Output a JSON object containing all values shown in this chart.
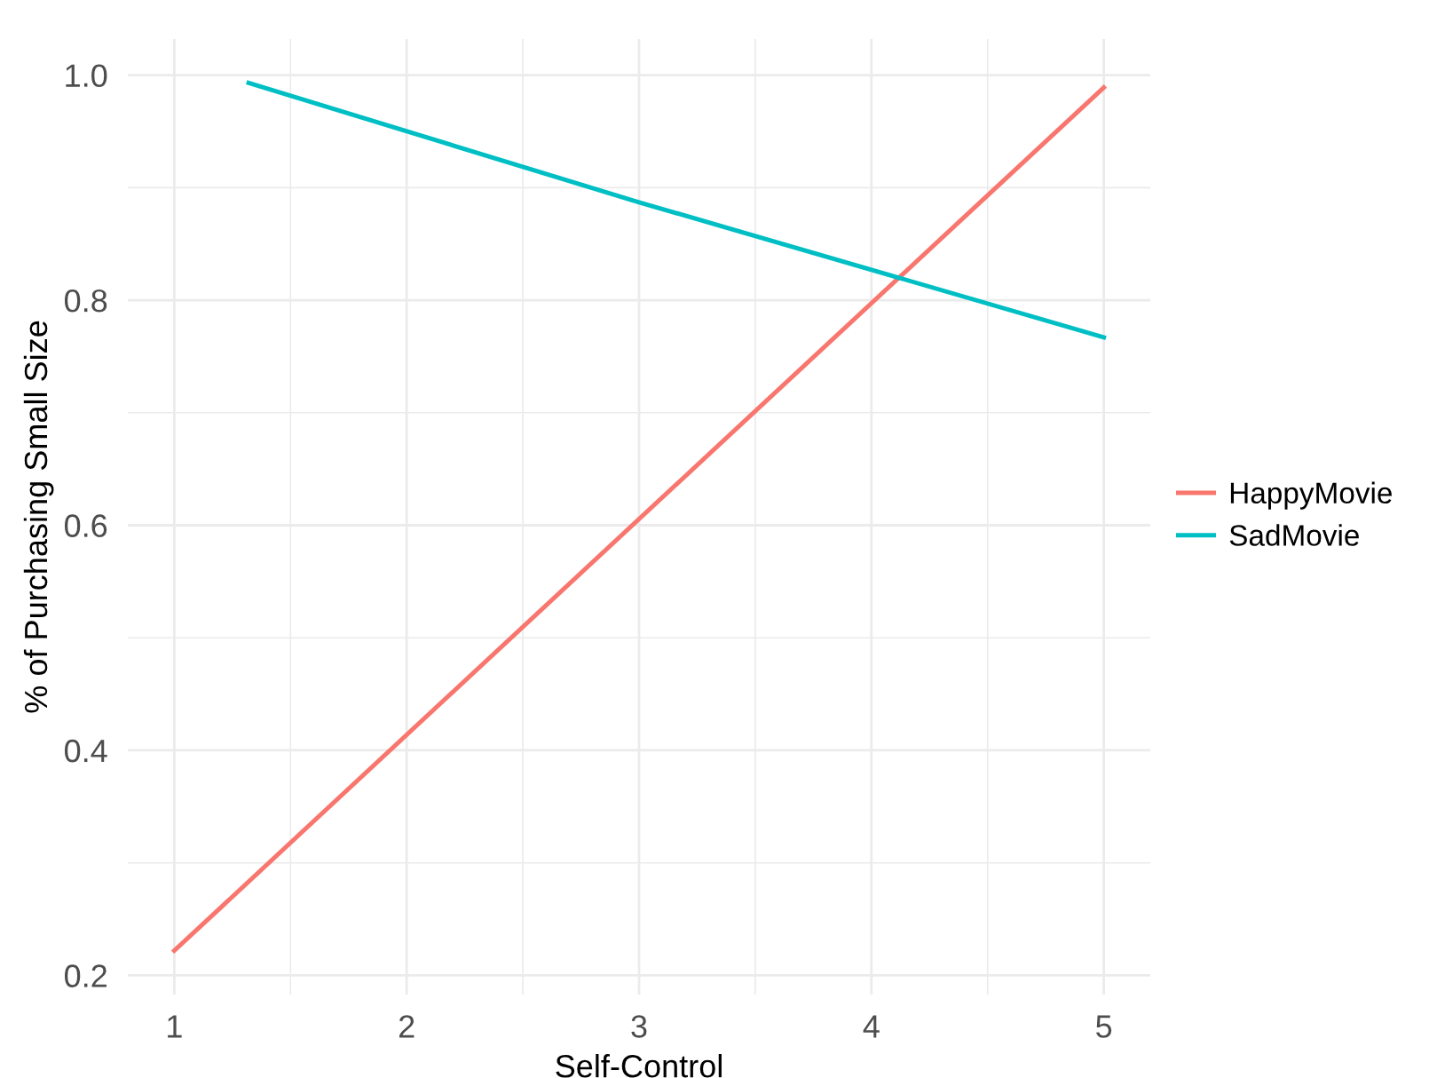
{
  "chart_data": {
    "type": "line",
    "xlabel": "Self-Control",
    "ylabel": "% of Purchasing Small Size",
    "series": [
      {
        "name": "HappyMovie",
        "color": "#f8766d",
        "x": [
          1,
          5
        ],
        "values": [
          0.222,
          0.989
        ]
      },
      {
        "name": "SadMovie",
        "color": "#00bfc4",
        "x": [
          1.32,
          3,
          5
        ],
        "values": [
          0.993,
          0.887,
          0.767
        ]
      }
    ],
    "xlim": [
      0.8,
      5.2
    ],
    "ylim": [
      0.183,
      1.032
    ],
    "xticks": [
      1,
      2,
      3,
      4,
      5
    ],
    "yticks": [
      0.2,
      0.4,
      0.6,
      0.8,
      {
        "value": 1.0,
        "label": "1.0"
      }
    ],
    "grid": true,
    "legend": "right",
    "marker": "none",
    "line_style": "solid"
  }
}
